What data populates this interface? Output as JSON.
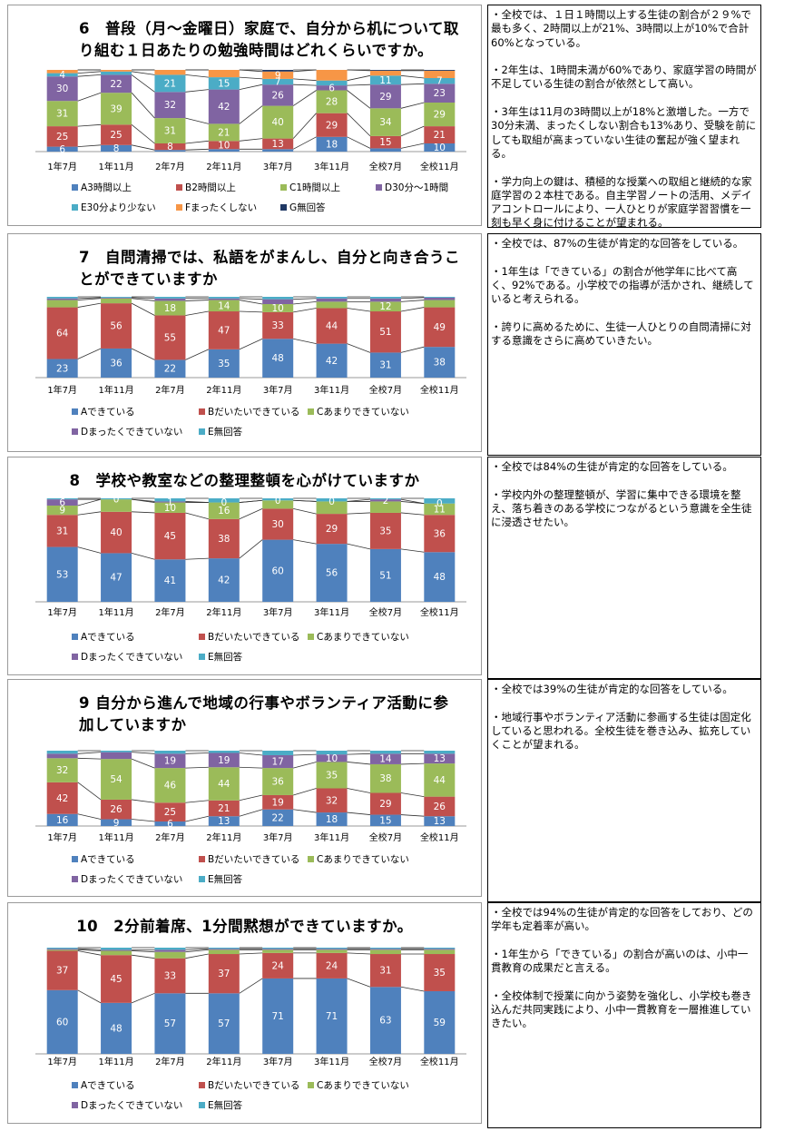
{
  "colors": {
    "A": "#4f81bd",
    "B": "#c0504d",
    "C": "#9bbb59",
    "D": "#8064a2",
    "E": "#4bacc6",
    "F": "#f79646",
    "G": "#1f3864"
  },
  "categories": [
    "1年7月",
    "1年11月",
    "2年7月",
    "2年11月",
    "3年7月",
    "3年11月",
    "全校7月",
    "全校11月"
  ],
  "charts": [
    {
      "title": "6　普段（月～金曜日）家庭で、自分から机について取り組む１日あたりの勉強時間はどれくらいですか。",
      "legend": [
        "A3時間以上",
        "B2時間以上",
        "C1時間以上",
        "D30分～1時間",
        "E30分より少ない",
        "Fまったくしない",
        "G無回答"
      ],
      "notes": [
        "・全校では、１日１時間以上する生徒の割合が２９%で最も多く、2時間以上が21%、3時間以上が10%で合計60%となっている。",
        "・2年生は、1時間未満が60%であり、家庭学習の時間が不足している生徒の割合が依然として高い。",
        "・3年生は11月の3時間以上が18%と激増した。一方で30分未満、まったくしない割合も13%あり、受験を前にしても取組が高まっていない生徒の奮起が強く望まれる。",
        "・学力向上の鍵は、積極的な授業への取組と継続的な家庭学習の２本柱である。自主学習ノートの活用、メデイアコントロールにより、一人ひとりが家庭学習習慣を一刻も早く身に付けることが望まれる。"
      ]
    },
    {
      "title": "7　自問清掃では、私語をがまんし、自分と向き合うことができていますか",
      "legend": [
        "Aできている",
        "Bだいたいできている",
        "Cあまりできていない",
        "Dまったくできていない",
        "E無回答"
      ],
      "notes": [
        "・全校では、87%の生徒が肯定的な回答をしている。",
        "・1年生は「できている」の割合が他学年に比べて高く、92%である。小学校での指導が活かされ、継続していると考えられる。",
        "・誇りに高めるために、生徒一人ひとりの自問清掃に対する意識をさらに高めていきたい。"
      ]
    },
    {
      "title": "8　学校や教室などの整理整頓を心がけていますか",
      "legend": [
        "Aできている",
        "Bだいたいできている",
        "Cあまりできていない",
        "Dまったくできていない",
        "E無回答"
      ],
      "notes": [
        "・全校では84%の生徒が肯定的な回答をしている。",
        "・学校内外の整理整頓が、学習に集中できる環境を整え、落ち着きのある学校につながるという意識を全生徒に浸透させたい。"
      ]
    },
    {
      "title": "9 自分から進んで地域の行事やボランティア活動に参加していますか",
      "legend": [
        "Aできている",
        "Bだいたいできている",
        "Cあまりできていない",
        "Dまったくできていない",
        "E無回答"
      ],
      "notes": [
        "・全校では39%の生徒が肯定的な回答をしている。",
        "・地域行事やボランティア活動に参画する生徒は固定化していると思われる。全校生徒を巻き込み、拡充していくことが望まれる。"
      ]
    },
    {
      "title": "10　2分前着席、1分間黙想ができていますか。",
      "legend": [
        "Aできている",
        "Bだいたいできている",
        "Cあまりできていない",
        "Dまったくできていない",
        "E無回答"
      ],
      "notes": [
        "・全校では94%の生徒が肯定的な回答をしており、どの学年も定着率が高い。",
        "・1年生から「できている」の割合が高いのは、小中一貫教育の成果だと言える。",
        "・全校体制で授業に向かう姿勢を強化し、小学校も巻き込んだ共同実践により、小中一貫教育を一層推進していきたい。"
      ]
    }
  ],
  "chart_data": [
    {
      "type": "bar",
      "stacked": true,
      "title": "6　普段（月～金曜日）家庭で、自分から机について取り組む１日あたりの勉強時間はどれくらいですか。",
      "categories": [
        "1年7月",
        "1年11月",
        "2年7月",
        "2年11月",
        "3年7月",
        "3年11月",
        "全校7月",
        "全校11月"
      ],
      "series": [
        {
          "name": "A3時間以上",
          "values": [
            6,
            8,
            2,
            3,
            3,
            18,
            4,
            10
          ]
        },
        {
          "name": "B2時間以上",
          "values": [
            25,
            25,
            8,
            10,
            13,
            29,
            15,
            21
          ]
        },
        {
          "name": "C1時間以上",
          "values": [
            31,
            39,
            31,
            21,
            40,
            28,
            34,
            29
          ]
        },
        {
          "name": "D30分～1時間",
          "values": [
            30,
            22,
            32,
            42,
            26,
            6,
            29,
            23
          ]
        },
        {
          "name": "E30分より少ない",
          "values": [
            4,
            4,
            21,
            15,
            7,
            6,
            11,
            7
          ]
        },
        {
          "name": "Fまったくしない",
          "values": [
            4,
            2,
            6,
            9,
            9,
            13,
            6,
            9
          ]
        },
        {
          "name": "G無回答",
          "values": [
            0,
            0,
            0,
            0,
            2,
            0,
            1,
            1
          ]
        }
      ],
      "shown_labels": [
        [
          "6",
          "25",
          "31",
          "30",
          "4",
          "",
          ""
        ],
        [
          "8",
          "25",
          "39",
          "22",
          "",
          "",
          ""
        ],
        [
          "",
          "8",
          "31",
          "32",
          "21",
          "",
          ""
        ],
        [
          "",
          "10",
          "21",
          "42",
          "15",
          "",
          ""
        ],
        [
          "",
          "13",
          "40",
          "26",
          "7",
          "9",
          ""
        ],
        [
          "18",
          "29",
          "28",
          "6",
          "",
          "",
          ""
        ],
        [
          "",
          "15",
          "34",
          "29",
          "11",
          "",
          ""
        ],
        [
          "10",
          "21",
          "29",
          "23",
          "7",
          "",
          ""
        ]
      ],
      "ylim": [
        0,
        100
      ]
    },
    {
      "type": "bar",
      "stacked": true,
      "title": "7　自問清掃では、私語をがまんし、自分と向き合うことができていますか",
      "categories": [
        "1年7月",
        "1年11月",
        "2年7月",
        "2年11月",
        "3年7月",
        "3年11月",
        "全校7月",
        "全校11月"
      ],
      "series": [
        {
          "name": "Aできている",
          "values": [
            23,
            36,
            22,
            35,
            48,
            42,
            31,
            38
          ]
        },
        {
          "name": "Bだいたいできている",
          "values": [
            64,
            56,
            55,
            47,
            33,
            44,
            51,
            49
          ]
        },
        {
          "name": "Cあまりできていない",
          "values": [
            9,
            6,
            18,
            14,
            10,
            8,
            12,
            9
          ]
        },
        {
          "name": "Dまったくできていない",
          "values": [
            2,
            1,
            3,
            2,
            6,
            4,
            4,
            3
          ]
        },
        {
          "name": "E無回答",
          "values": [
            2,
            1,
            2,
            2,
            3,
            2,
            2,
            1
          ]
        }
      ],
      "shown_labels": [
        [
          "23",
          "64",
          "",
          "",
          ""
        ],
        [
          "36",
          "56",
          "",
          "",
          ""
        ],
        [
          "22",
          "55",
          "18",
          "",
          ""
        ],
        [
          "35",
          "47",
          "14",
          "",
          ""
        ],
        [
          "48",
          "33",
          "10",
          "",
          ""
        ],
        [
          "42",
          "44",
          "",
          "",
          ""
        ],
        [
          "31",
          "51",
          "12",
          "",
          ""
        ],
        [
          "38",
          "49",
          "",
          "",
          ""
        ]
      ],
      "ylim": [
        0,
        100
      ]
    },
    {
      "type": "bar",
      "stacked": true,
      "title": "8　学校や教室などの整理整頓を心がけていますか",
      "categories": [
        "1年7月",
        "1年11月",
        "2年7月",
        "2年11月",
        "3年7月",
        "3年11月",
        "全校7月",
        "全校11月"
      ],
      "series": [
        {
          "name": "Aできている",
          "values": [
            53,
            47,
            41,
            42,
            60,
            56,
            51,
            48
          ]
        },
        {
          "name": "Bだいたいできている",
          "values": [
            31,
            40,
            45,
            38,
            30,
            29,
            35,
            36
          ]
        },
        {
          "name": "Cあまりできていない",
          "values": [
            9,
            12,
            10,
            16,
            8,
            12,
            11,
            11
          ]
        },
        {
          "name": "Dまったくできていない",
          "values": [
            6,
            0,
            1,
            0,
            0,
            0,
            2,
            0
          ]
        },
        {
          "name": "E無回答",
          "values": [
            1,
            1,
            3,
            4,
            2,
            3,
            1,
            5
          ]
        }
      ],
      "shown_labels": [
        [
          "53",
          "31",
          "9",
          "6",
          ""
        ],
        [
          "47",
          "40",
          "",
          "0",
          ""
        ],
        [
          "41",
          "45",
          "10",
          "1",
          ""
        ],
        [
          "42",
          "38",
          "16",
          "0",
          ""
        ],
        [
          "60",
          "30",
          "",
          "0",
          ""
        ],
        [
          "56",
          "29",
          "",
          "0",
          ""
        ],
        [
          "51",
          "35",
          "",
          "2",
          ""
        ],
        [
          "48",
          "36",
          "11",
          "0",
          ""
        ]
      ],
      "ylim": [
        0,
        100
      ]
    },
    {
      "type": "bar",
      "stacked": true,
      "title": "9 自分から進んで地域の行事やボランティア活動に参加していますか",
      "categories": [
        "1年7月",
        "1年11月",
        "2年7月",
        "2年11月",
        "3年7月",
        "3年11月",
        "全校7月",
        "全校11月"
      ],
      "series": [
        {
          "name": "Aできている",
          "values": [
            16,
            9,
            6,
            13,
            22,
            18,
            15,
            13
          ]
        },
        {
          "name": "Bだいたいできている",
          "values": [
            42,
            26,
            25,
            21,
            19,
            32,
            29,
            26
          ]
        },
        {
          "name": "Cあまりできていない",
          "values": [
            32,
            54,
            46,
            44,
            36,
            35,
            38,
            44
          ]
        },
        {
          "name": "Dまったくできていない",
          "values": [
            6,
            9,
            19,
            19,
            17,
            10,
            14,
            13
          ]
        },
        {
          "name": "E無回答",
          "values": [
            4,
            2,
            4,
            3,
            6,
            5,
            4,
            4
          ]
        }
      ],
      "shown_labels": [
        [
          "16",
          "42",
          "32",
          "",
          ""
        ],
        [
          "9",
          "26",
          "54",
          "",
          ""
        ],
        [
          "6",
          "25",
          "46",
          "19",
          ""
        ],
        [
          "13",
          "21",
          "44",
          "19",
          ""
        ],
        [
          "22",
          "19",
          "36",
          "17",
          ""
        ],
        [
          "18",
          "32",
          "35",
          "10",
          ""
        ],
        [
          "15",
          "29",
          "38",
          "14",
          ""
        ],
        [
          "13",
          "26",
          "44",
          "13",
          ""
        ]
      ],
      "ylim": [
        0,
        100
      ]
    },
    {
      "type": "bar",
      "stacked": true,
      "title": "10　2分前着席、1分間黙想ができていますか。",
      "categories": [
        "1年7月",
        "1年11月",
        "2年7月",
        "2年11月",
        "3年7月",
        "3年11月",
        "全校7月",
        "全校11月"
      ],
      "series": [
        {
          "name": "Aできている",
          "values": [
            60,
            48,
            57,
            57,
            71,
            71,
            63,
            59
          ]
        },
        {
          "name": "Bだいたいできている",
          "values": [
            37,
            45,
            33,
            37,
            24,
            24,
            31,
            35
          ]
        },
        {
          "name": "Cあまりできていない",
          "values": [
            1,
            4,
            6,
            4,
            3,
            3,
            4,
            4
          ]
        },
        {
          "name": "Dまったくできていない",
          "values": [
            1,
            1,
            2,
            1,
            1,
            1,
            1,
            1
          ]
        },
        {
          "name": "E無回答",
          "values": [
            1,
            2,
            2,
            1,
            1,
            1,
            1,
            1
          ]
        }
      ],
      "shown_labels": [
        [
          "60",
          "37",
          "",
          "",
          ""
        ],
        [
          "48",
          "45",
          "",
          "",
          ""
        ],
        [
          "57",
          "33",
          "",
          "",
          ""
        ],
        [
          "57",
          "37",
          "",
          "",
          ""
        ],
        [
          "71",
          "24",
          "",
          "",
          ""
        ],
        [
          "71",
          "24",
          "",
          "",
          ""
        ],
        [
          "63",
          "31",
          "",
          "",
          ""
        ],
        [
          "59",
          "35",
          "",
          "",
          ""
        ]
      ],
      "ylim": [
        0,
        100
      ]
    }
  ]
}
